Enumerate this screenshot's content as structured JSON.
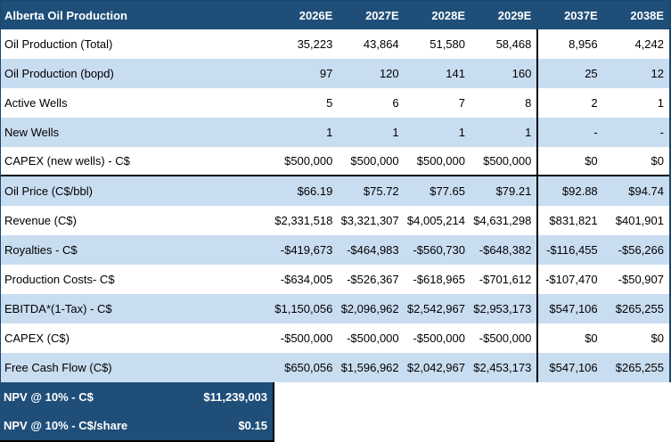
{
  "header": {
    "title": "Alberta Oil Production",
    "years": [
      "2026E",
      "2027E",
      "2028E",
      "2029E",
      "2037E",
      "2038E"
    ]
  },
  "rows": [
    {
      "label": "Oil Production (Total)",
      "values": [
        "35,223",
        "43,864",
        "51,580",
        "58,468",
        "8,956",
        "4,242"
      ],
      "shaded": false,
      "section_end": false
    },
    {
      "label": "Oil Production (bopd)",
      "values": [
        "97",
        "120",
        "141",
        "160",
        "25",
        "12"
      ],
      "shaded": true,
      "section_end": false
    },
    {
      "label": "Active Wells",
      "values": [
        "5",
        "6",
        "7",
        "8",
        "2",
        "1"
      ],
      "shaded": false,
      "section_end": false
    },
    {
      "label": "New Wells",
      "values": [
        "1",
        "1",
        "1",
        "1",
        "-",
        "-"
      ],
      "shaded": true,
      "section_end": false
    },
    {
      "label": "CAPEX (new wells) - C$",
      "values": [
        "$500,000",
        "$500,000",
        "$500,000",
        "$500,000",
        "$0",
        "$0"
      ],
      "shaded": false,
      "section_end": true
    },
    {
      "label": "Oil Price (C$/bbl)",
      "values": [
        "$66.19",
        "$75.72",
        "$77.65",
        "$79.21",
        "$92.88",
        "$94.74"
      ],
      "shaded": true,
      "section_end": false
    },
    {
      "label": "Revenue (C$)",
      "values": [
        "$2,331,518",
        "$3,321,307",
        "$4,005,214",
        "$4,631,298",
        "$831,821",
        "$401,901"
      ],
      "shaded": false,
      "section_end": false
    },
    {
      "label": "Royalties - C$",
      "values": [
        "-$419,673",
        "-$464,983",
        "-$560,730",
        "-$648,382",
        "-$116,455",
        "-$56,266"
      ],
      "shaded": true,
      "section_end": false
    },
    {
      "label": "Production Costs- C$",
      "values": [
        "-$634,005",
        "-$526,367",
        "-$618,965",
        "-$701,612",
        "-$107,470",
        "-$50,907"
      ],
      "shaded": false,
      "section_end": false
    },
    {
      "label": "EBITDA*(1-Tax) - C$",
      "values": [
        "$1,150,056",
        "$2,096,962",
        "$2,542,967",
        "$2,953,173",
        "$547,106",
        "$265,255"
      ],
      "shaded": true,
      "section_end": false
    },
    {
      "label": "CAPEX (C$)",
      "values": [
        "-$500,000",
        "-$500,000",
        "-$500,000",
        "-$500,000",
        "$0",
        "$0"
      ],
      "shaded": false,
      "section_end": false
    },
    {
      "label": "Free Cash Flow (C$)",
      "values": [
        "$650,056",
        "$1,596,962",
        "$2,042,967",
        "$2,453,173",
        "$547,106",
        "$265,255"
      ],
      "shaded": true,
      "section_end": false
    }
  ],
  "summary": [
    {
      "label": "NPV @ 10% - C$",
      "value": "$11,239,003"
    },
    {
      "label": "NPV @ 10% - C$/share",
      "value": "$0.15"
    }
  ],
  "colors": {
    "header_bg": "#1F4E79",
    "band_bg": "#C9DDF1",
    "row_bg": "#FFFFFF",
    "summary_bg": "#1F4E79",
    "divider": "#000000",
    "header_text": "#FFFFFF",
    "body_text": "#000000"
  }
}
